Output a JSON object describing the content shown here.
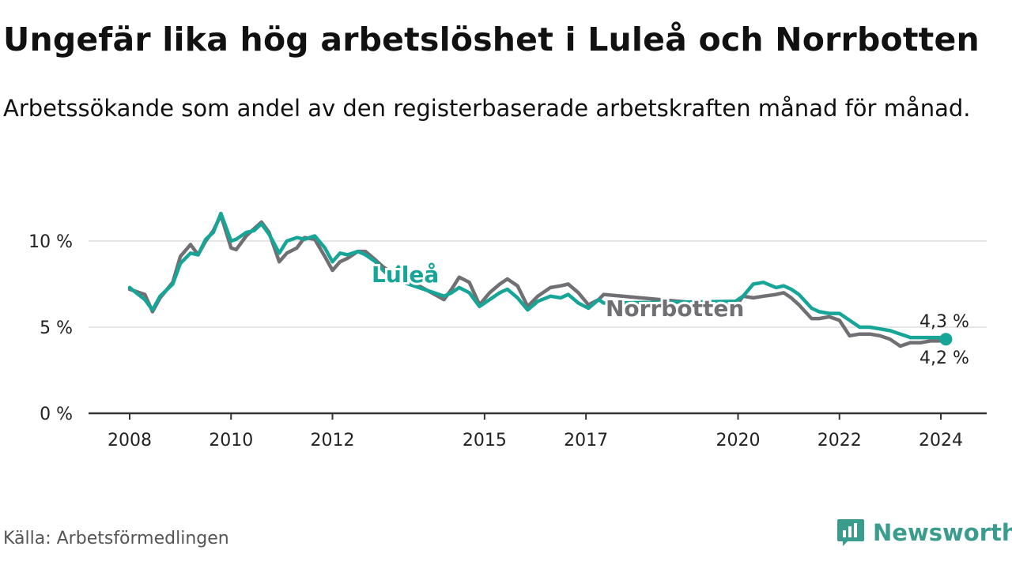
{
  "title": "Ungefär lika hög arbetslöshet i Luleå och Norrbotten",
  "subtitle": "Arbetssökande som andel av den registerbaserade arbetskraften månad för månad.",
  "source": "Källa: Arbetsförmedlingen",
  "brand": {
    "name": "Newsworthy",
    "icon": "newsworthy-logo-icon",
    "color": "#3a9c8c"
  },
  "colors": {
    "lulea": "#17a597",
    "norrbotten": "#706f73",
    "grid": "#dddddd",
    "axis": "#333333"
  },
  "chart_data": {
    "type": "line",
    "title": "Ungefär lika hög arbetslöshet i Luleå och Norrbotten",
    "xlabel": "",
    "ylabel": "",
    "ylim": [
      0,
      12
    ],
    "yticks": [
      0,
      5,
      10
    ],
    "ytick_labels": [
      "0 %",
      "5 %",
      "10 %"
    ],
    "xticks": [
      2008,
      2010,
      2012,
      2015,
      2017,
      2020,
      2022,
      2024
    ],
    "xtick_labels": [
      "2008",
      "2010",
      "2012",
      "2015",
      "2017",
      "2020",
      "2022",
      "2024"
    ],
    "grid": true,
    "end_labels": {
      "lulea": "4,3 %",
      "norrbotten": "4,2 %"
    },
    "series": [
      {
        "name": "Luleå",
        "key": "lulea",
        "x": [
          2008.0,
          2008.3,
          2008.45,
          2008.6,
          2008.85,
          2009.0,
          2009.2,
          2009.35,
          2009.5,
          2009.65,
          2009.8,
          2010.0,
          2010.1,
          2010.3,
          2010.45,
          2010.6,
          2010.75,
          2010.95,
          2011.1,
          2011.3,
          2011.45,
          2011.65,
          2011.85,
          2012.0,
          2012.15,
          2012.3,
          2012.5,
          2012.65,
          2012.85,
          2013.0,
          2013.15,
          2013.3,
          2013.4,
          2014.2,
          2014.35,
          2014.5,
          2014.7,
          2014.9,
          2015.1,
          2015.3,
          2015.45,
          2015.65,
          2015.85,
          2016.05,
          2016.3,
          2016.5,
          2016.65,
          2016.85,
          2017.05,
          2017.25,
          2017.35,
          2019.95,
          2020.1,
          2020.3,
          2020.5,
          2020.75,
          2020.9,
          2021.05,
          2021.2,
          2021.45,
          2021.6,
          2021.8,
          2022.0,
          2022.2,
          2022.4,
          2022.6,
          2022.8,
          2023.0,
          2023.2,
          2023.4,
          2023.6,
          2023.8,
          2024.0,
          2024.1
        ],
        "y": [
          7.3,
          6.6,
          6.0,
          6.8,
          7.5,
          8.7,
          9.3,
          9.2,
          10.1,
          10.5,
          11.6,
          10.0,
          10.1,
          10.5,
          10.6,
          11.0,
          10.4,
          9.3,
          10.0,
          10.2,
          10.1,
          10.3,
          9.6,
          8.8,
          9.3,
          9.2,
          9.4,
          9.2,
          8.8,
          8.3,
          7.9,
          8.5,
          7.6,
          6.8,
          7.0,
          7.3,
          7.0,
          6.2,
          6.6,
          7.0,
          7.2,
          6.7,
          6.0,
          6.5,
          6.8,
          6.7,
          6.9,
          6.4,
          6.1,
          6.6,
          6.4,
          6.5,
          6.8,
          7.5,
          7.6,
          7.3,
          7.4,
          7.2,
          6.9,
          6.1,
          5.9,
          5.8,
          5.8,
          5.4,
          5.0,
          5.0,
          4.9,
          4.8,
          4.6,
          4.4,
          4.4,
          4.4,
          4.4,
          4.3
        ]
      },
      {
        "name": "Norrbotten",
        "key": "norrbotten",
        "x": [
          2008.0,
          2008.3,
          2008.45,
          2008.6,
          2008.85,
          2009.0,
          2009.2,
          2009.35,
          2009.5,
          2009.65,
          2009.8,
          2010.0,
          2010.1,
          2010.3,
          2010.45,
          2010.6,
          2010.75,
          2010.95,
          2011.1,
          2011.3,
          2011.45,
          2011.65,
          2011.85,
          2012.0,
          2012.15,
          2012.3,
          2012.5,
          2012.65,
          2012.85,
          2013.0,
          2013.15,
          2013.3,
          2013.4,
          2014.2,
          2014.35,
          2014.5,
          2014.7,
          2014.9,
          2015.1,
          2015.3,
          2015.45,
          2015.65,
          2015.85,
          2016.05,
          2016.3,
          2016.5,
          2016.65,
          2016.85,
          2017.05,
          2017.25,
          2017.35,
          2019.95,
          2020.1,
          2020.3,
          2020.5,
          2020.75,
          2020.9,
          2021.05,
          2021.2,
          2021.45,
          2021.6,
          2021.8,
          2022.0,
          2022.2,
          2022.4,
          2022.6,
          2022.8,
          2023.0,
          2023.2,
          2023.4,
          2023.6,
          2023.8,
          2024.0,
          2024.1
        ],
        "y": [
          7.2,
          6.9,
          5.9,
          6.7,
          7.6,
          9.1,
          9.8,
          9.2,
          10.0,
          10.6,
          11.5,
          9.6,
          9.5,
          10.3,
          10.7,
          11.1,
          10.5,
          8.8,
          9.3,
          9.6,
          10.2,
          10.1,
          9.1,
          8.3,
          8.8,
          9.0,
          9.4,
          9.4,
          8.9,
          8.5,
          8.2,
          8.4,
          7.9,
          6.6,
          7.2,
          7.9,
          7.6,
          6.3,
          7.0,
          7.5,
          7.8,
          7.4,
          6.2,
          6.8,
          7.3,
          7.4,
          7.5,
          7.0,
          6.3,
          6.6,
          6.9,
          6.2,
          6.8,
          6.7,
          6.8,
          6.9,
          7.0,
          6.7,
          6.3,
          5.5,
          5.5,
          5.6,
          5.4,
          4.5,
          4.6,
          4.6,
          4.5,
          4.3,
          3.9,
          4.1,
          4.1,
          4.2,
          4.2,
          4.2
        ]
      }
    ]
  }
}
